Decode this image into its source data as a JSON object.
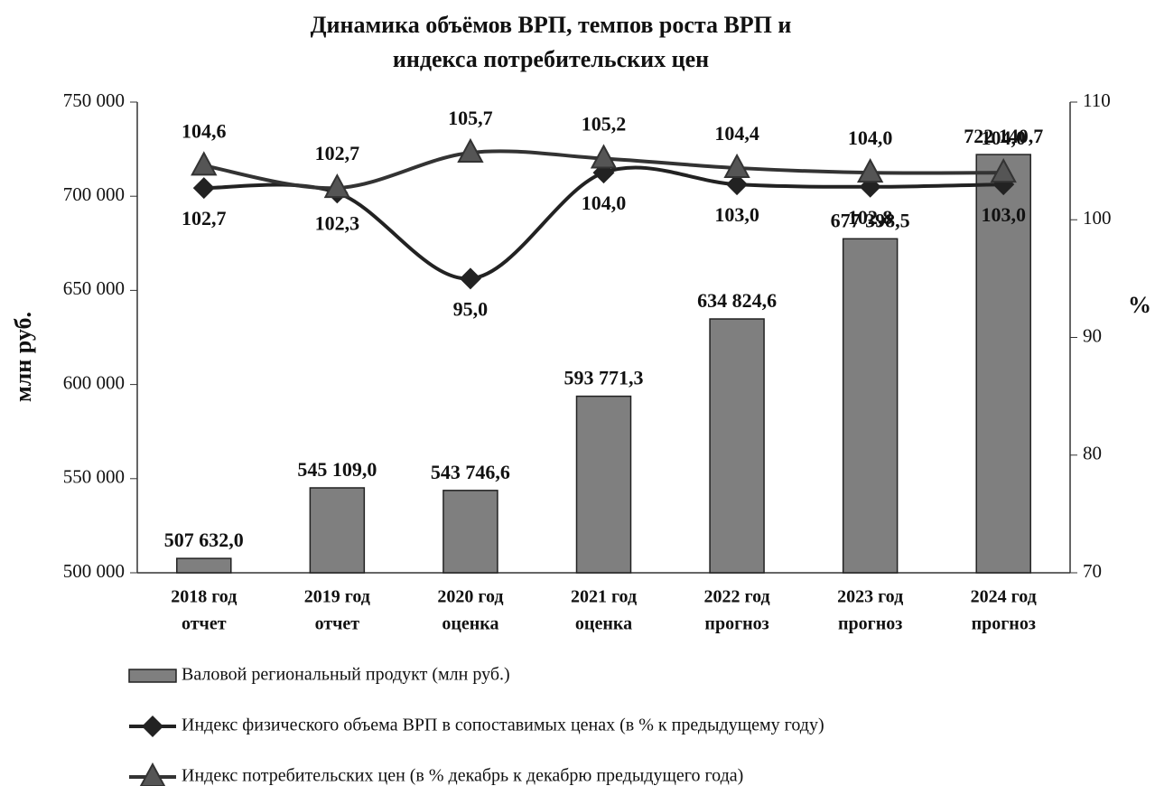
{
  "chart_data": {
    "type": "bar",
    "title": [
      "Динамика объёмов ВРП, темпов роста ВРП и",
      "индекса потребительских цен"
    ],
    "ylabel": "млн руб.",
    "y2label": "%",
    "categories": [
      [
        "2018 год",
        "отчет"
      ],
      [
        "2019 год",
        "отчет"
      ],
      [
        "2020 год",
        "оценка"
      ],
      [
        "2021 год",
        "оценка"
      ],
      [
        "2022 год",
        "прогноз"
      ],
      [
        "2023 год",
        "прогноз"
      ],
      [
        "2024 год",
        "прогноз"
      ]
    ],
    "ylim": [
      500000,
      750000
    ],
    "yticks": [
      {
        "value": 500000,
        "label": "500 000"
      },
      {
        "value": 550000,
        "label": "550 000"
      },
      {
        "value": 600000,
        "label": "600 000"
      },
      {
        "value": 650000,
        "label": "650 000"
      },
      {
        "value": 700000,
        "label": "700 000"
      },
      {
        "value": 750000,
        "label": "750 000"
      }
    ],
    "y2lim": [
      70,
      110
    ],
    "y2ticks": [
      70,
      80,
      90,
      100,
      110
    ],
    "series": [
      {
        "name": "Валовой региональный продукт (млн руб.)",
        "type": "bar",
        "color": "#7f7f7f",
        "values": [
          507632.0,
          545109.0,
          543746.6,
          593771.3,
          634824.6,
          677398.5,
          722140.7
        ],
        "value_labels": [
          "507 632,0",
          "545 109,0",
          "543 746,6",
          "593 771,3",
          "634 824,6",
          "677 398,5",
          "722 140,7"
        ]
      },
      {
        "name": "Индекс физического объема ВРП в сопоставимых ценах (в % к предыдущему году)",
        "type": "line",
        "marker": "diamond",
        "axis": "y2",
        "color": "#222222",
        "values": [
          102.7,
          102.3,
          95.0,
          104.0,
          103.0,
          102.8,
          103.0
        ],
        "value_labels": [
          "102,7",
          "102,3",
          "95,0",
          "104,0",
          "103,0",
          "102,8",
          "103,0"
        ]
      },
      {
        "name": "Индекс потребительских цен (в % декабрь к декабрю предыдущего года)",
        "type": "line",
        "marker": "triangle",
        "axis": "y2",
        "color": "#333333",
        "values": [
          104.6,
          102.7,
          105.7,
          105.2,
          104.4,
          104.0,
          104.0
        ],
        "value_labels": [
          "104,6",
          "102,7",
          "105,7",
          "105,2",
          "104,4",
          "104,0",
          "104,0"
        ]
      }
    ]
  }
}
